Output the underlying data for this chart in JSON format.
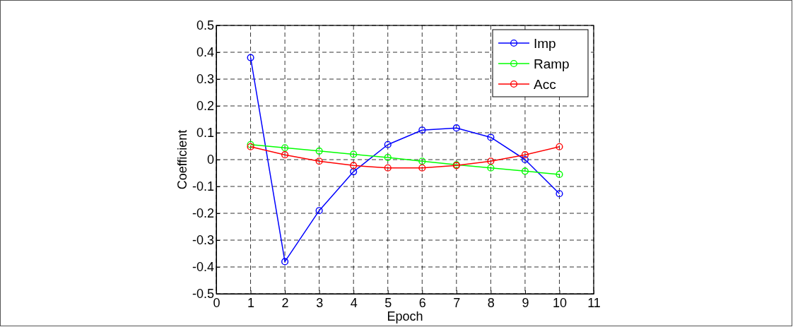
{
  "chart_data": {
    "type": "line",
    "xlabel": "Epoch",
    "ylabel": "Coefficient",
    "x": [
      1,
      2,
      3,
      4,
      5,
      6,
      7,
      8,
      9,
      10
    ],
    "series": [
      {
        "name": "Imp",
        "color": "#0000ff",
        "values": [
          0.38,
          -0.38,
          -0.19,
          -0.045,
          0.056,
          0.11,
          0.118,
          0.083,
          0,
          -0.127
        ]
      },
      {
        "name": "Ramp",
        "color": "#00ff00",
        "values": [
          0.056,
          0.044,
          0.032,
          0.02,
          0.008,
          -0.006,
          -0.019,
          -0.031,
          -0.043,
          -0.055
        ]
      },
      {
        "name": "Acc",
        "color": "#ff0000",
        "values": [
          0.048,
          0.018,
          -0.006,
          -0.022,
          -0.031,
          -0.031,
          -0.022,
          -0.006,
          0.018,
          0.048
        ]
      }
    ],
    "xlim": [
      0,
      11
    ],
    "xticks": [
      0,
      1,
      2,
      3,
      4,
      5,
      6,
      7,
      8,
      9,
      10,
      11
    ],
    "ylim": [
      -0.5,
      0.5
    ],
    "yticks": [
      {
        "value": -0.5,
        "label": "-0.5"
      },
      {
        "value": -0.4,
        "label": "-0.4"
      },
      {
        "value": -0.3,
        "label": "-0.3"
      },
      {
        "value": -0.2,
        "label": "-0.2"
      },
      {
        "value": -0.1,
        "label": "-0.1"
      },
      {
        "value": 0,
        "label": "0"
      },
      {
        "value": 0.1,
        "label": "0.1"
      },
      {
        "value": 0.2,
        "label": "0.2"
      },
      {
        "value": 0.3,
        "label": "0.3"
      },
      {
        "value": 0.4,
        "label": "0.4"
      },
      {
        "value": 0.5,
        "label": "0.5"
      }
    ],
    "grid": true,
    "legend": "top right",
    "marker": "circle",
    "line_style": "solid"
  }
}
